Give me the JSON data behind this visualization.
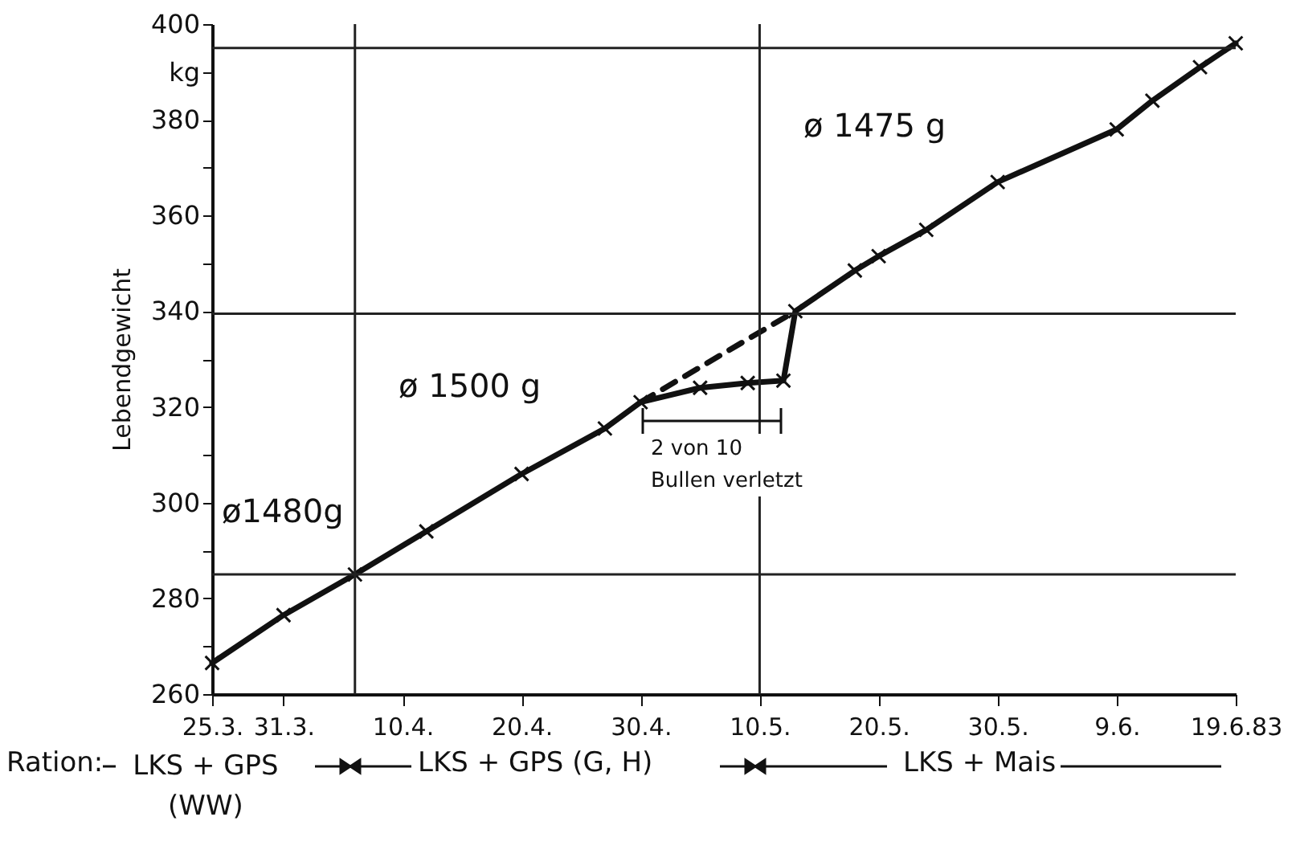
{
  "chart_data": {
    "type": "line",
    "ylabel": "Lebendgewicht",
    "xlim": [
      "1983-03-25",
      "1983-06-19"
    ],
    "xticks": [
      {
        "value": "1983-03-25",
        "label": "25.3."
      },
      {
        "value": "1983-03-31",
        "label": "31.3."
      },
      {
        "value": "1983-04-10",
        "label": "10.4."
      },
      {
        "value": "1983-04-20",
        "label": "20.4."
      },
      {
        "value": "1983-04-30",
        "label": "30.4."
      },
      {
        "value": "1983-05-10",
        "label": "10.5."
      },
      {
        "value": "1983-05-20",
        "label": "20.5."
      },
      {
        "value": "1983-05-30",
        "label": "30.5."
      },
      {
        "value": "1983-06-09",
        "label": "9.6."
      },
      {
        "value": "1983-06-19",
        "label": "19.6.83"
      }
    ],
    "ylim": [
      260,
      400
    ],
    "yticks": [
      260,
      {
        "value": 270,
        "label": null
      },
      280,
      {
        "value": 290,
        "label": null
      },
      300,
      {
        "value": 310,
        "label": null
      },
      320,
      {
        "value": 330,
        "label": null
      },
      340,
      {
        "value": 350,
        "label": null
      },
      360,
      {
        "value": 370,
        "label": null
      },
      380,
      {
        "value": 390,
        "label": "kg"
      },
      400
    ],
    "grid": false,
    "series": [
      {
        "color": "#111111",
        "marker": "cross",
        "line_style": "solid",
        "x": [
          "1983-03-25",
          "1983-03-31",
          "1983-04-06",
          "1983-04-12",
          "1983-04-20",
          "1983-04-27",
          "1983-04-30",
          "1983-05-05",
          "1983-05-09",
          "1983-05-12",
          "1983-05-13",
          "1983-05-18",
          "1983-05-20",
          "1983-05-24",
          "1983-05-30",
          "1983-06-09",
          "1983-06-12",
          "1983-06-16",
          "1983-06-19"
        ],
        "values": [
          266.5,
          276.5,
          285,
          294,
          306,
          315.5,
          321,
          324,
          325,
          325.5,
          340,
          348.5,
          351.5,
          357,
          367,
          378,
          384,
          391,
          396
        ]
      },
      {
        "color": "#111111",
        "marker": "none",
        "line_style": "dashed",
        "x": [
          "1983-04-30",
          "1983-05-13"
        ],
        "values": [
          321,
          340
        ]
      }
    ],
    "ref_lines": [
      {
        "axis": "y",
        "value": 285
      },
      {
        "axis": "y",
        "value": 339.5
      },
      {
        "axis": "y",
        "value": 395
      },
      {
        "axis": "x",
        "value": "1983-04-06"
      },
      {
        "axis": "x",
        "value": "1983-05-10"
      }
    ],
    "annotations": [
      "ø1480g",
      "ø 1500 g",
      "ø 1475 g",
      "2 von 10\nBullen verletzt",
      "Ration:",
      "LKS + GPS\n(WW)",
      "LKS + GPS (G, H)",
      "LKS + Mais"
    ]
  }
}
